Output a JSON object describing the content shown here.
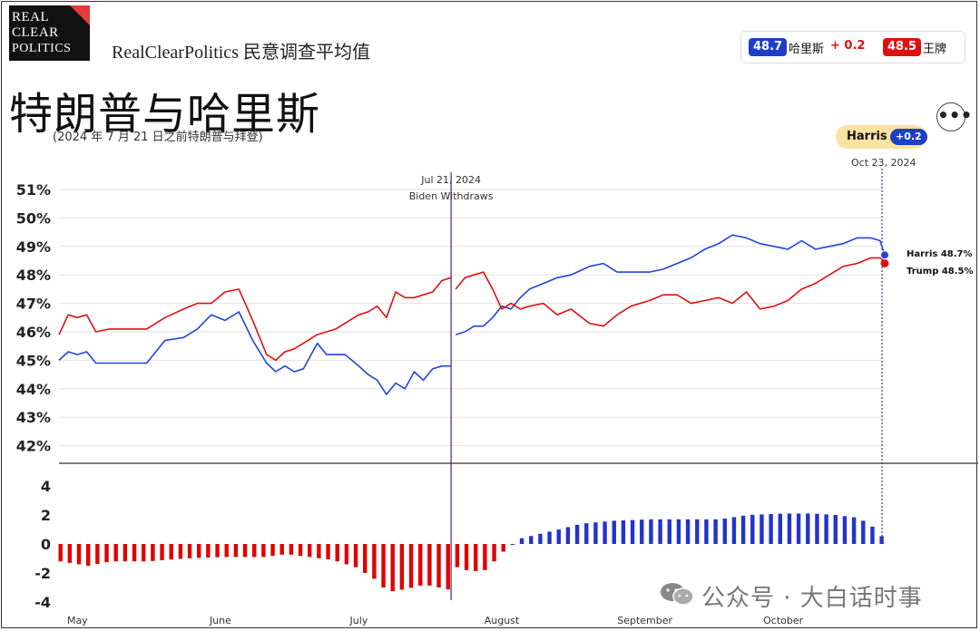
{
  "header": {
    "logo_line1": "REAL",
    "logo_line2": "CLEAR",
    "logo_line3": "POLITICS",
    "rcp_title": "RealClearPolitics 民意调查平均值",
    "headline": "特朗普与哈里斯",
    "subhead": "(2024 年 7 月 21 日之前特朗普与拜登)"
  },
  "legend": {
    "harris_value": "48.7",
    "harris_name": "哈里斯",
    "harris_change": "+ 0.2",
    "trump_value": "48.5",
    "trump_name": "王牌"
  },
  "badge": {
    "leader": "Harris",
    "lead": "+0.2",
    "date": "Oct 23, 2024"
  },
  "menu": {
    "icon": "more-icon",
    "glyph": "•••"
  },
  "watermark": {
    "text": "公众号 · 大白话时事"
  },
  "colors": {
    "harris": "#2244dd",
    "trump": "#e01010",
    "spread_blue": "#2233cc",
    "spread_red": "#e00000"
  },
  "chart_data": [
    {
      "type": "line",
      "y_unit": "%",
      "ylim": [
        42,
        51
      ],
      "y_ticks": [
        "51%",
        "50%",
        "49%",
        "48%",
        "47%",
        "46%",
        "45%",
        "44%",
        "43%",
        "42%"
      ],
      "y_tick_values": [
        51,
        50,
        49,
        48,
        47,
        46,
        45,
        44,
        43,
        42
      ],
      "x_range": [
        "2024-04-27",
        "2024-10-23"
      ],
      "x_ticks": [
        "May",
        "June",
        "July",
        "August",
        "September",
        "October"
      ],
      "x_tick_dates": [
        "2024-05-01",
        "2024-06-01",
        "2024-07-01",
        "2024-08-01",
        "2024-09-01",
        "2024-10-01"
      ],
      "annotation": {
        "date": "2024-07-21",
        "line1": "Jul 21, 2024",
        "line2": "Biden Withdraws"
      },
      "end_date": "2024-10-23",
      "end_labels": {
        "harris": "Harris 48.7%",
        "trump": "Trump 48.5%"
      },
      "series": [
        {
          "name": "Harris",
          "segments": [
            {
              "x": [
                "2024-04-27",
                "2024-04-29",
                "2024-05-01",
                "2024-05-03",
                "2024-05-05",
                "2024-05-08",
                "2024-05-12",
                "2024-05-16",
                "2024-05-20",
                "2024-05-24",
                "2024-05-27",
                "2024-05-30",
                "2024-06-02",
                "2024-06-05",
                "2024-06-08",
                "2024-06-11",
                "2024-06-13",
                "2024-06-15",
                "2024-06-17",
                "2024-06-19",
                "2024-06-22",
                "2024-06-24",
                "2024-06-26",
                "2024-06-28",
                "2024-07-01",
                "2024-07-03",
                "2024-07-05",
                "2024-07-07",
                "2024-07-09",
                "2024-07-11",
                "2024-07-13",
                "2024-07-15",
                "2024-07-17",
                "2024-07-19",
                "2024-07-21"
              ],
              "y": [
                45.0,
                45.3,
                45.2,
                45.3,
                44.9,
                44.9,
                44.9,
                44.9,
                45.7,
                45.8,
                46.1,
                46.6,
                46.4,
                46.7,
                45.7,
                44.9,
                44.6,
                44.8,
                44.6,
                44.7,
                45.6,
                45.2,
                45.2,
                45.2,
                44.8,
                44.5,
                44.3,
                43.8,
                44.2,
                44.0,
                44.6,
                44.3,
                44.7,
                44.8,
                44.8
              ]
            },
            {
              "x": [
                "2024-07-22",
                "2024-07-24",
                "2024-07-26",
                "2024-07-28",
                "2024-07-30",
                "2024-08-01",
                "2024-08-03",
                "2024-08-05",
                "2024-08-07",
                "2024-08-10",
                "2024-08-13",
                "2024-08-16",
                "2024-08-20",
                "2024-08-23",
                "2024-08-26",
                "2024-08-29",
                "2024-09-02",
                "2024-09-05",
                "2024-09-08",
                "2024-09-11",
                "2024-09-14",
                "2024-09-17",
                "2024-09-20",
                "2024-09-23",
                "2024-09-26",
                "2024-09-29",
                "2024-10-02",
                "2024-10-05",
                "2024-10-08",
                "2024-10-11",
                "2024-10-14",
                "2024-10-17",
                "2024-10-20",
                "2024-10-22",
                "2024-10-23"
              ],
              "y": [
                45.9,
                46.0,
                46.2,
                46.2,
                46.5,
                46.9,
                46.8,
                47.2,
                47.5,
                47.7,
                47.9,
                48.0,
                48.3,
                48.4,
                48.1,
                48.1,
                48.1,
                48.2,
                48.4,
                48.6,
                48.9,
                49.1,
                49.4,
                49.3,
                49.1,
                49.0,
                48.9,
                49.2,
                48.9,
                49.0,
                49.1,
                49.3,
                49.3,
                49.2,
                48.7
              ]
            }
          ]
        },
        {
          "name": "Trump",
          "segments": [
            {
              "x": [
                "2024-04-27",
                "2024-04-29",
                "2024-05-01",
                "2024-05-03",
                "2024-05-05",
                "2024-05-08",
                "2024-05-12",
                "2024-05-16",
                "2024-05-20",
                "2024-05-24",
                "2024-05-27",
                "2024-05-30",
                "2024-06-02",
                "2024-06-05",
                "2024-06-08",
                "2024-06-11",
                "2024-06-13",
                "2024-06-15",
                "2024-06-17",
                "2024-06-19",
                "2024-06-22",
                "2024-06-24",
                "2024-06-26",
                "2024-06-28",
                "2024-07-01",
                "2024-07-03",
                "2024-07-05",
                "2024-07-07",
                "2024-07-09",
                "2024-07-11",
                "2024-07-13",
                "2024-07-15",
                "2024-07-17",
                "2024-07-19",
                "2024-07-21"
              ],
              "y": [
                45.9,
                46.6,
                46.5,
                46.6,
                46.0,
                46.1,
                46.1,
                46.1,
                46.5,
                46.8,
                47.0,
                47.0,
                47.4,
                47.5,
                46.4,
                45.2,
                45.0,
                45.3,
                45.4,
                45.6,
                45.9,
                46.0,
                46.1,
                46.3,
                46.6,
                46.7,
                46.9,
                46.5,
                47.4,
                47.2,
                47.2,
                47.3,
                47.4,
                47.8,
                47.9
              ]
            },
            {
              "x": [
                "2024-07-22",
                "2024-07-24",
                "2024-07-26",
                "2024-07-28",
                "2024-07-30",
                "2024-08-01",
                "2024-08-03",
                "2024-08-05",
                "2024-08-07",
                "2024-08-10",
                "2024-08-13",
                "2024-08-16",
                "2024-08-20",
                "2024-08-23",
                "2024-08-26",
                "2024-08-29",
                "2024-09-02",
                "2024-09-05",
                "2024-09-08",
                "2024-09-11",
                "2024-09-14",
                "2024-09-17",
                "2024-09-20",
                "2024-09-23",
                "2024-09-26",
                "2024-09-29",
                "2024-10-02",
                "2024-10-05",
                "2024-10-08",
                "2024-10-11",
                "2024-10-14",
                "2024-10-17",
                "2024-10-20",
                "2024-10-22",
                "2024-10-23"
              ],
              "y": [
                47.5,
                47.9,
                48.0,
                48.1,
                47.5,
                46.8,
                47.0,
                46.8,
                46.9,
                47.0,
                46.6,
                46.8,
                46.3,
                46.2,
                46.6,
                46.9,
                47.1,
                47.3,
                47.3,
                47.0,
                47.1,
                47.2,
                47.0,
                47.4,
                46.8,
                46.9,
                47.1,
                47.5,
                47.7,
                48.0,
                48.3,
                48.4,
                48.6,
                48.6,
                48.5
              ]
            }
          ]
        }
      ]
    },
    {
      "type": "bar",
      "ylim": [
        -4,
        4
      ],
      "y_ticks": [
        "4",
        "2",
        "0",
        "-2",
        "-4"
      ],
      "y_tick_values": [
        4,
        2,
        0,
        -2,
        -4
      ],
      "spread_series": [
        {
          "x": [
            "2024-04-27",
            "2024-05-03",
            "2024-05-08",
            "2024-05-16",
            "2024-05-24",
            "2024-06-01",
            "2024-06-05",
            "2024-06-10",
            "2024-06-15",
            "2024-06-20",
            "2024-06-25",
            "2024-06-30",
            "2024-07-04",
            "2024-07-07",
            "2024-07-11",
            "2024-07-15",
            "2024-07-18",
            "2024-07-21"
          ],
          "y": [
            -1.2,
            -1.5,
            -1.2,
            -1.2,
            -1.0,
            -0.9,
            -0.9,
            -0.9,
            -0.7,
            -0.9,
            -1.1,
            -1.6,
            -2.4,
            -3.3,
            -3.1,
            -2.8,
            -3.0,
            -3.2
          ]
        },
        {
          "x": [
            "2024-07-22",
            "2024-07-25",
            "2024-07-28",
            "2024-07-30",
            "2024-08-02",
            "2024-08-05",
            "2024-08-09",
            "2024-08-13",
            "2024-08-18",
            "2024-08-25",
            "2024-09-02",
            "2024-09-10",
            "2024-09-17",
            "2024-09-23",
            "2024-10-01",
            "2024-10-07",
            "2024-10-12",
            "2024-10-17",
            "2024-10-20",
            "2024-10-23"
          ],
          "y": [
            -1.6,
            -1.9,
            -1.8,
            -1.2,
            -0.2,
            0.4,
            0.7,
            1.0,
            1.4,
            1.6,
            1.7,
            1.7,
            1.7,
            2.0,
            2.1,
            2.1,
            2.0,
            1.8,
            1.2,
            0.2
          ]
        }
      ]
    }
  ]
}
